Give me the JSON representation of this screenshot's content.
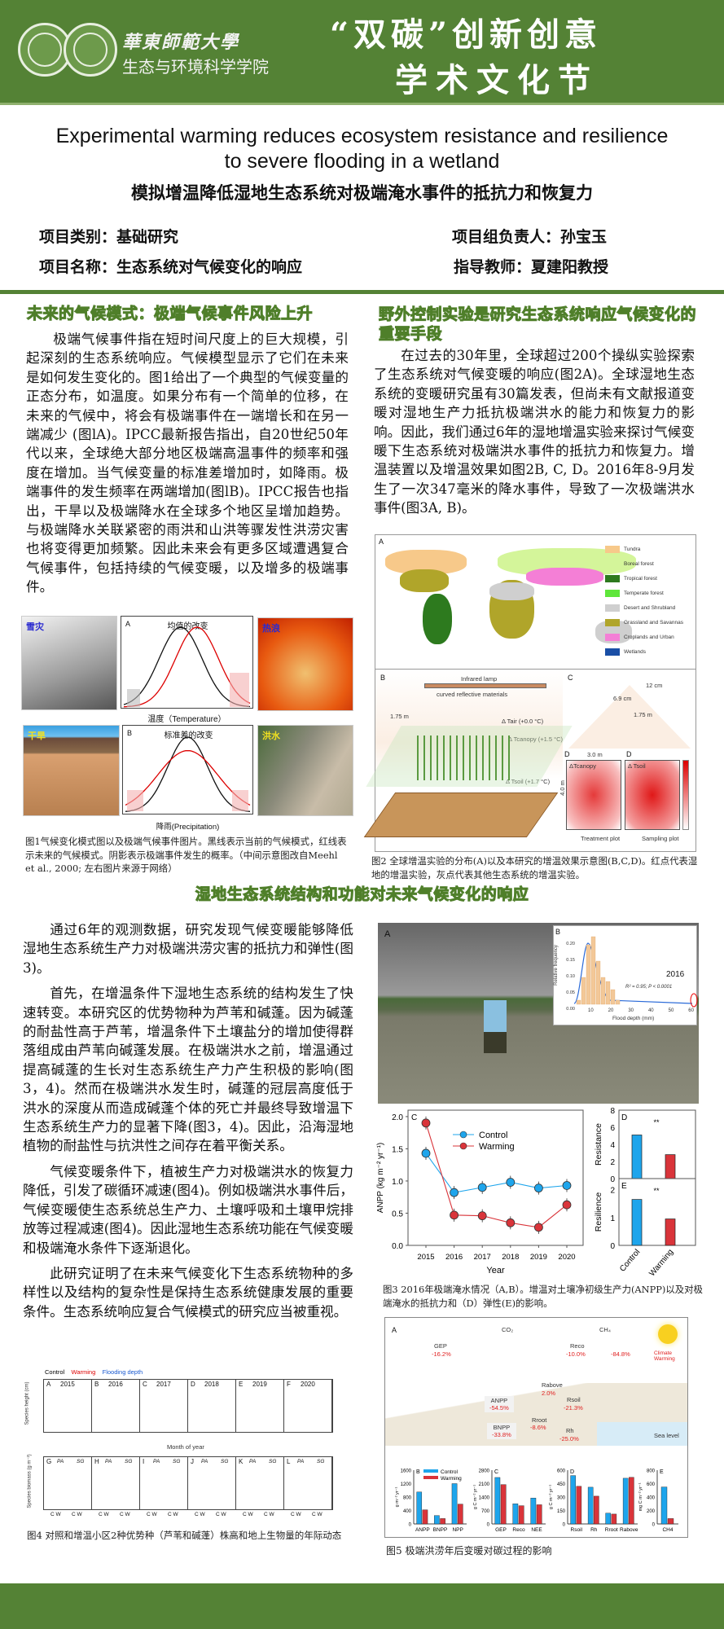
{
  "header": {
    "university": "華東師範大學",
    "college": "生态与环境科学学院",
    "festival_line1": "“双碳”创新创意",
    "festival_line2": "学术文化节",
    "colors": {
      "brand_green": "#548235"
    }
  },
  "title": {
    "en_line1": "Experimental warming reduces ecosystem resistance and resilience",
    "en_line2": "to severe flooding in a wetland",
    "cn": "模拟增温降低湿地生态系统对极端淹水事件的抵抗力和恢复力"
  },
  "info": {
    "category": "项目类别：基础研究",
    "leader": "项目组负责人：孙宝玉",
    "name": "项目名称：生态系统对气候变化的响应",
    "advisor": "指导教师：夏建阳教授"
  },
  "section1": {
    "heading": "未来的气候模式：极端气候事件风险上升",
    "body": "极端气候事件指在短时间尺度上的巨大规模，引起深刻的生态系统响应。气候模型显示了它们在未来是如何发生变化的。图1给出了一个典型的气候变量的正态分布，如温度。如果分布有一个简单的位移，在未来的气候中，将会有极端事件在一端增长和在另一端减少 (图lA)。IPCC最新报告指出，自20世纪50年代以来，全球绝大部分地区极端高温事件的频率和强度在增加。当气候变量的标准差增加时，如降雨。极端事件的发生频率在两端增加(图lB)。IPCC报告也指出，干旱以及极端降水在全球多个地区呈增加趋势。与极端降水关联紧密的雨洪和山洪等骤发性洪涝灾害也将变得更加频繁。因此未来会有更多区域遭遇复合气候事件，包括持续的气候变暖，以及增多的极端事件。"
  },
  "figure1": {
    "photos": [
      "雪灾",
      "热浪",
      "干旱",
      "洪水"
    ],
    "panel_a": {
      "label": "A",
      "title": "均值的改变",
      "xlabel": "温度（Temperature）"
    },
    "panel_b": {
      "label": "B",
      "title": "标准差的改变",
      "xlabel": "降雨(Precipitation)"
    },
    "caption": "图1气候变化模式图以及极端气候事件图片。黑线表示当前的气候模式，红线表示未来的气候模式。阴影表示极端事件发生的概率。（中间示意图改自Meehl et al., 2000; 左右图片来源于网络）"
  },
  "section2": {
    "heading": "野外控制实验是研究生态系统响应气候变化的重要手段",
    "body": "在过去的30年里，全球超过200个操纵实验探索了生态系统对气候变暖的响应(图2A)。全球湿地生态系统的变暖研究虽有30篇发表，但尚未有文献报道变暖对湿地生产力抵抗极端洪水的能力和恢复力的影响。因此，我们通过6年的湿地增温实验来探讨气候变暖下生态系统对极端洪水事件的抵抗力和恢复力。增温装置以及增温效果如图2B, C, D。2016年8-9月发生了一次347毫米的降水事件，导致了一次极端洪水事件(图3A, B)。"
  },
  "figure2": {
    "legend": [
      {
        "label": "Tundra",
        "color": "#f7c98a"
      },
      {
        "label": "Boreal forest",
        "color": "#d4f59a"
      },
      {
        "label": "Tropical forest",
        "color": "#2d7a1e"
      },
      {
        "label": "Temperate forest",
        "color": "#5ee63a"
      },
      {
        "label": "Desert and Shrubland",
        "color": "#cfcfcf"
      },
      {
        "label": "Grassland and Savannas",
        "color": "#b0a52a"
      },
      {
        "label": "Croplands and Urban",
        "color": "#f47fd6"
      },
      {
        "label": "Wetlands",
        "color": "#1a4fa6"
      }
    ],
    "panel_labels": [
      "A",
      "B",
      "C",
      "D",
      "D"
    ],
    "b_texts": [
      "Infrared lamp",
      "curved reflective materials",
      "1.75 m",
      "Δ Tair (+0.0 °C)",
      "Δ Tcanopy (+1.5 °C)",
      "Δ Tsoil (+1.7 °C)"
    ],
    "c_texts": [
      "12 cm",
      "6.9 cm",
      "1.75 m"
    ],
    "d_texts": [
      "3.0 m",
      "4.0 m",
      "ΔTcanopy",
      "Δ Tsoil",
      "Treatment plot",
      "Sampling plot"
    ],
    "caption": "图2 全球增温实验的分布(A)以及本研究的增温效果示意图(B,C,D)。红点代表湿地的增温实验，灰点代表其他生态系统的增温实验。"
  },
  "section3": {
    "heading": "湿地生态系统结构和功能对未来气候变化的响应",
    "paragraphs": [
      "通过6年的观测数据，研究发现气候变暖能够降低湿地生态系统生产力对极端洪涝灾害的抵抗力和弹性(图3)。",
      "首先，在增温条件下湿地生态系统的结构发生了快速转变。本研究区的优势物种为芦苇和碱蓬。因为碱蓬的耐盐性高于芦苇，增温条件下土壤盐分的增加使得群落组成由芦苇向碱蓬发展。在极端洪水之前，增温通过提高碱蓬的生长对生态系统生产力产生积极的影响(图3，4)。然而在极端洪水发生时，碱蓬的冠层高度低于洪水的深度从而造成碱蓬个体的死亡并最终导致增温下生态系统生产力的显著下降(图3，4)。因此，沿海湿地植物的耐盐性与抗洪性之间存在着平衡关系。",
      "气候变暖条件下，植被生产力对极端洪水的恢复力降低，引发了碳循环减速(图4)。例如极端洪水事件后，气候变暖使生态系统总生产力、土壤呼吸和土壤甲烷排放等过程减速(图4)。因此湿地生态系统功能在气候变暖和极端淹水条件下逐渐退化。",
      "此研究证明了在未来气候变化下生态系统物种的多样性以及结构的复杂性是保持生态系统健康发展的重要条件。生态系统响应复合气候模式的研究应当被重视。"
    ]
  },
  "figure3": {
    "panel_a": "A",
    "panel_b": {
      "label": "B",
      "ylabel": "Relative frequency",
      "xlabel": "Flood depth (mm)",
      "annotation_year": "2016",
      "stats": "R² = 0.95; P < 0.0001",
      "yticks": [
        "0.00",
        "0.05",
        "0.10",
        "0.15",
        "0.20"
      ],
      "xticks": [
        "10",
        "20",
        "30",
        "40",
        "50",
        "60"
      ]
    },
    "caption": "图3 2016年极端淹水情况（A,B）。增温对土壤净初级生产力(ANPP)以及对极端淹水的抵抗力和（D）弹性(E)的影响。"
  },
  "figure4": {
    "legend": [
      "Control",
      "Warming",
      "Flooding depth"
    ],
    "years": [
      "2015",
      "2016",
      "2017",
      "2018",
      "2019",
      "2020"
    ],
    "top_panels": [
      "A",
      "B",
      "C",
      "D",
      "E",
      "F"
    ],
    "bottom_panels": [
      "G",
      "H",
      "I",
      "J",
      "K",
      "L"
    ],
    "species": [
      "PA",
      "SG"
    ],
    "ylabel_top": "Species height (cm)",
    "ylabel_bottom": "Species biomass (g m⁻²)",
    "xlabel_top": "Month of year",
    "bar_labels": "C W",
    "caption": "图4 对照和增温小区2种优势种（芦苇和碱蓬）株高和地上生物量的年际动态"
  },
  "figure5": {
    "panel_a": "A",
    "labels": {
      "co2": "CO₂",
      "ch4": "CH₄",
      "gep": "GEP",
      "gep_pct": "-16.2%",
      "reco": "Reco",
      "reco_pct": "-10.0%",
      "ch4_pct": "-84.8%",
      "warming": "Climate Warming",
      "rabove": "Rabove",
      "rabove_pct": "2.0%",
      "anpp": "ANPP",
      "anpp_pct": "-54.5%",
      "rsoil": "Rsoil",
      "rsoil_pct": "-21.3%",
      "rroot": "Rroot",
      "rroot_pct": "-8.6%",
      "bnpp": "BNPP",
      "bnpp_pct": "-33.8%",
      "rh": "Rh",
      "rh_pct": "-25.0%",
      "sea": "Sea level"
    },
    "caption": "图5 极端洪涝年后变暖对碳过程的影响"
  },
  "chart_data": [
    {
      "id": "fig3c",
      "type": "line",
      "panel": "C",
      "x": [
        2015,
        2016,
        2017,
        2018,
        2019,
        2020
      ],
      "xlabel": "Year",
      "ylabel": "ANPP (kg m⁻² yr⁻¹)",
      "ylim": [
        0,
        2.1
      ],
      "yticks": [
        0.0,
        0.5,
        1.0,
        1.5,
        2.0
      ],
      "legend_position": "top-center",
      "series": [
        {
          "name": "Control",
          "color": "#1ea5ec",
          "values": [
            1.43,
            0.82,
            0.9,
            0.98,
            0.89,
            0.93
          ]
        },
        {
          "name": "Warming",
          "color": "#d9343a",
          "values": [
            1.9,
            0.47,
            0.46,
            0.35,
            0.28,
            0.63
          ]
        }
      ]
    },
    {
      "id": "fig3d",
      "type": "bar",
      "panel": "D",
      "ylabel": "Resistance",
      "ylim": [
        0,
        8
      ],
      "yticks": [
        0,
        2,
        4,
        6,
        8
      ],
      "categories": [
        "Control",
        "Warming"
      ],
      "values": [
        5.1,
        2.8
      ],
      "colors": [
        "#1ea5ec",
        "#d9343a"
      ],
      "significance": "**"
    },
    {
      "id": "fig3e",
      "type": "bar",
      "panel": "E",
      "ylabel": "Resilience",
      "ylim": [
        0,
        2.4
      ],
      "yticks": [
        0,
        1,
        2
      ],
      "categories": [
        "Control",
        "Warming"
      ],
      "values": [
        1.65,
        0.95
      ],
      "colors": [
        "#1ea5ec",
        "#d9343a"
      ],
      "significance": "**"
    },
    {
      "id": "fig5b",
      "type": "bar",
      "panel": "B",
      "ylabel": "g m⁻² yr⁻¹",
      "ylim": [
        0,
        1600
      ],
      "yticks": [
        0,
        400,
        800,
        1200,
        1600
      ],
      "categories": [
        "ANPP",
        "BNPP",
        "NPP"
      ],
      "series": [
        {
          "name": "Control",
          "color": "#1ea5ec",
          "values": [
            950,
            250,
            1200
          ]
        },
        {
          "name": "Warming",
          "color": "#d9343a",
          "values": [
            420,
            160,
            590
          ]
        }
      ],
      "legend_position": "top"
    },
    {
      "id": "fig5c",
      "type": "bar",
      "panel": "C",
      "ylabel": "g C m⁻² yr⁻¹",
      "ylim": [
        0,
        2800
      ],
      "yticks": [
        0,
        700,
        1400,
        2100,
        2800
      ],
      "categories": [
        "GEP",
        "Reco",
        "NEE"
      ],
      "series": [
        {
          "name": "Control",
          "color": "#1ea5ec",
          "values": [
            2420,
            1050,
            1350
          ]
        },
        {
          "name": "Warming",
          "color": "#d9343a",
          "values": [
            2050,
            950,
            1000
          ]
        }
      ]
    },
    {
      "id": "fig5d",
      "type": "bar",
      "panel": "D",
      "ylabel": "g C m⁻² yr⁻¹",
      "ylim": [
        0,
        600
      ],
      "yticks": [
        0,
        150,
        300,
        450,
        600
      ],
      "categories": [
        "Rsoil",
        "Rh",
        "Rroot",
        "Rabove"
      ],
      "series": [
        {
          "name": "Control",
          "color": "#1ea5ec",
          "values": [
            540,
            410,
            120,
            510
          ]
        },
        {
          "name": "Warming",
          "color": "#d9343a",
          "values": [
            420,
            310,
            110,
            520
          ]
        }
      ]
    },
    {
      "id": "fig5e",
      "type": "bar",
      "panel": "E",
      "ylabel": "mg C m⁻² yr⁻¹",
      "ylim": [
        0,
        800
      ],
      "yticks": [
        0,
        200,
        400,
        600,
        800
      ],
      "categories": [
        "CH4"
      ],
      "series": [
        {
          "name": "Control",
          "color": "#1ea5ec",
          "values": [
            550
          ]
        },
        {
          "name": "Warming",
          "color": "#d9343a",
          "values": [
            80
          ]
        }
      ]
    }
  ]
}
